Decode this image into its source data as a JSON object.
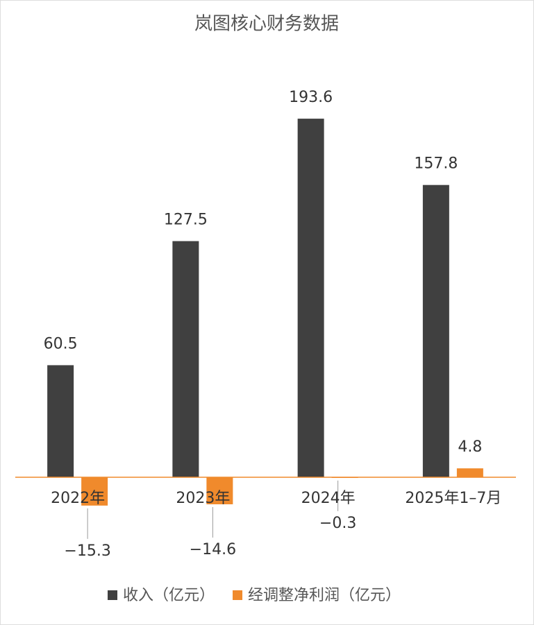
{
  "chart_data": {
    "type": "bar",
    "title": "岚图核心财务数据",
    "categories": [
      "2022年",
      "2023年",
      "2024年",
      "2025年1–7月"
    ],
    "series": [
      {
        "name": "收入（亿元）",
        "color": "#404040",
        "values": [
          60.5,
          127.5,
          193.6,
          157.8
        ]
      },
      {
        "name": "经调整净利润（亿元）",
        "color": "#f08a2c",
        "values": [
          -15.3,
          -14.6,
          -0.3,
          4.8
        ],
        "value_labels": [
          "−15.3",
          "−14.6",
          "−0.3",
          "4.8"
        ]
      }
    ],
    "ylim": [
      -20,
      210
    ],
    "legend": "bottom"
  }
}
